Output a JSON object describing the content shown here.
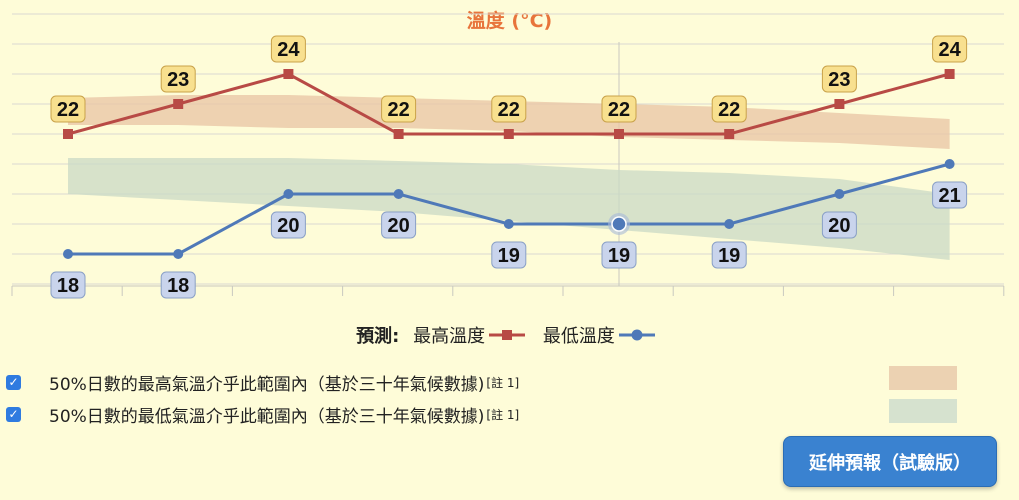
{
  "chart_data": {
    "type": "line",
    "title": "溫度 (°C)",
    "x": [
      0,
      1,
      2,
      3,
      4,
      5,
      6,
      7,
      8
    ],
    "ylim": [
      14,
      27
    ],
    "series": [
      {
        "name": "最高溫度",
        "values": [
          22,
          23,
          24,
          22,
          22,
          22,
          22,
          23,
          24
        ],
        "color": "#b84a45"
      },
      {
        "name": "最低溫度",
        "values": [
          18,
          18,
          20,
          20,
          19,
          19,
          19,
          20,
          21
        ],
        "color": "#4f79b8"
      }
    ],
    "bands": [
      {
        "name": "max_range",
        "upper": [
          23.2,
          23.3,
          23.3,
          23.2,
          23.1,
          23.0,
          22.9,
          22.7,
          22.5
        ],
        "lower": [
          22.3,
          22.3,
          22.2,
          22.2,
          22.1,
          21.9,
          21.8,
          21.7,
          21.5
        ],
        "color": "#e8c4a4"
      },
      {
        "name": "min_range",
        "upper": [
          21.2,
          21.2,
          21.2,
          21.1,
          21.0,
          20.8,
          20.7,
          20.5,
          20.0
        ],
        "lower": [
          20.0,
          19.8,
          19.6,
          19.4,
          19.1,
          18.8,
          18.5,
          18.2,
          17.8
        ],
        "color": "#c9d9c6"
      }
    ],
    "highlight_index": 5,
    "grid": true,
    "legend_position": "bottom"
  },
  "legend": {
    "prefix": "預測:",
    "max_label": "最高溫度",
    "min_label": "最低溫度"
  },
  "ranges": {
    "max_text": "50%日數的最高氣溫介乎此範圍內（基於三十年氣候數據)",
    "min_text": "50%日數的最低氣溫介乎此範圍內（基於三十年氣候數據)",
    "note": "[註 1]",
    "check": "✓"
  },
  "button_label": "延伸預報（試驗版）"
}
